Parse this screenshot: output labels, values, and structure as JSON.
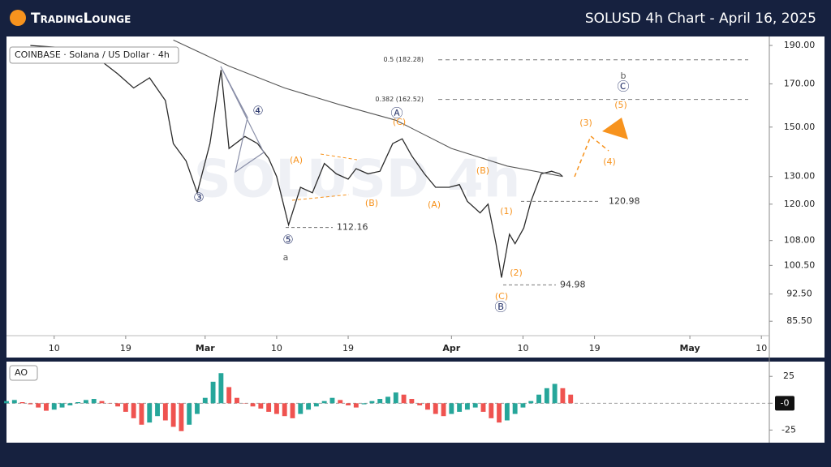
{
  "header": {
    "logo": "TradingLounge",
    "title": "SOLUSD 4h Chart - April 16, 2025"
  },
  "chart_data": [
    {
      "type": "line",
      "legend_box": "COINBASE · Solana / US Dollar · 4h",
      "watermark": "SOLUSD 4h",
      "log_scale": true,
      "xlim": [
        35,
        131
      ],
      "xticks": [
        {
          "value": 41,
          "label": "10"
        },
        {
          "value": 50,
          "label": "19"
        },
        {
          "value": 60,
          "label": "Mar"
        },
        {
          "value": 69,
          "label": "10"
        },
        {
          "value": 78,
          "label": "19"
        },
        {
          "value": 91,
          "label": "Apr"
        },
        {
          "value": 100,
          "label": "10"
        },
        {
          "value": 109,
          "label": "19"
        },
        {
          "value": 121,
          "label": "May"
        },
        {
          "value": 130,
          "label": "10"
        }
      ],
      "ylim": [
        82,
        195
      ],
      "yticks": [
        {
          "value": 190,
          "label": "190.00"
        },
        {
          "value": 170,
          "label": "170.00"
        },
        {
          "value": 150,
          "label": "150.00"
        },
        {
          "value": 130,
          "label": "130.00"
        },
        {
          "value": 120,
          "label": "120.00"
        },
        {
          "value": 108,
          "label": "108.00"
        },
        {
          "value": 100.5,
          "label": "100.50"
        },
        {
          "value": 92.5,
          "label": "92.50"
        },
        {
          "value": 85.5,
          "label": "85.50"
        }
      ],
      "series": [
        {
          "color": "#2b2b2b",
          "x": [
            38,
            45,
            49,
            51,
            53,
            55,
            56,
            57.6,
            59,
            60.6,
            62,
            63,
            65,
            66.6,
            68,
            69,
            70.5,
            72,
            73.5,
            75,
            76.5,
            78,
            79,
            80.5,
            82,
            83.6,
            84.8,
            86,
            87.6,
            89,
            90.7,
            92,
            93,
            94.6,
            95.6,
            96.6,
            97.3,
            98.3,
            99,
            100.1,
            101,
            102.3,
            103.6,
            104.6,
            105
          ],
          "values": [
            190,
            188,
            175,
            168,
            173,
            162,
            143,
            136,
            124,
            143,
            177,
            141,
            146,
            143,
            137,
            130,
            113,
            126,
            124,
            135,
            131,
            129,
            133,
            131,
            132,
            143,
            145,
            138,
            131,
            126,
            126,
            127,
            121,
            117,
            120,
            107,
            97,
            110,
            107,
            112,
            121,
            131,
            132,
            131,
            130
          ]
        },
        {
          "color": "#555555",
          "x": [
            56,
            63,
            70,
            77,
            84,
            91,
            98,
            105
          ],
          "values": [
            193,
            179,
            168,
            160,
            153,
            141,
            134,
            130
          ]
        }
      ],
      "levels": [
        112.16,
        120.98,
        94.98
      ],
      "fib_levels": [
        {
          "value": 182.28,
          "label": "0.5 (182.28)"
        },
        {
          "value": 162.52,
          "label": "0.382 (162.52)"
        }
      ],
      "wave_labels": [
        "③",
        "④",
        "⑤",
        "a",
        "(A)",
        "(B)",
        "Ⓐ",
        "(C)",
        "(A)",
        "(B)",
        "(1)",
        "(2)",
        "(C)",
        "Ⓑ",
        "(3)",
        "(4)",
        "(5)",
        "Ⓒ",
        "b"
      ]
    },
    {
      "type": "bar",
      "legend_box": "AO",
      "x": [
        35,
        36,
        37,
        38,
        39,
        40,
        41,
        42,
        43,
        44,
        45,
        46,
        47,
        48,
        49,
        50,
        51,
        52,
        53,
        54,
        55,
        56,
        57,
        58,
        59,
        60,
        61,
        62,
        63,
        64,
        65,
        66,
        67,
        68,
        69,
        70,
        71,
        72,
        73,
        74,
        75,
        76,
        77,
        78,
        79,
        80,
        81,
        82,
        83,
        84,
        85,
        86,
        87,
        88,
        89,
        90,
        91,
        92,
        93,
        94,
        95,
        96,
        97,
        98,
        99,
        100,
        101,
        102,
        103,
        104,
        105,
        106
      ],
      "values": [
        2,
        3,
        1,
        -1,
        -4,
        -7,
        -6,
        -4,
        -2,
        1,
        3,
        4,
        2,
        0,
        -3,
        -8,
        -14,
        -20,
        -18,
        -12,
        -16,
        -22,
        -26,
        -20,
        -10,
        5,
        20,
        28,
        15,
        5,
        0,
        -3,
        -5,
        -8,
        -10,
        -12,
        -14,
        -10,
        -6,
        -3,
        2,
        5,
        3,
        -2,
        -4,
        -1,
        2,
        4,
        6,
        10,
        8,
        4,
        -2,
        -6,
        -10,
        -12,
        -10,
        -8,
        -6,
        -4,
        -8,
        -14,
        -18,
        -16,
        -10,
        -4,
        2,
        8,
        14,
        18,
        14,
        8
      ],
      "ylim": [
        -36,
        38
      ],
      "yticks": [
        25,
        {
          "value": 0,
          "label": "-0"
        },
        -25
      ]
    }
  ]
}
